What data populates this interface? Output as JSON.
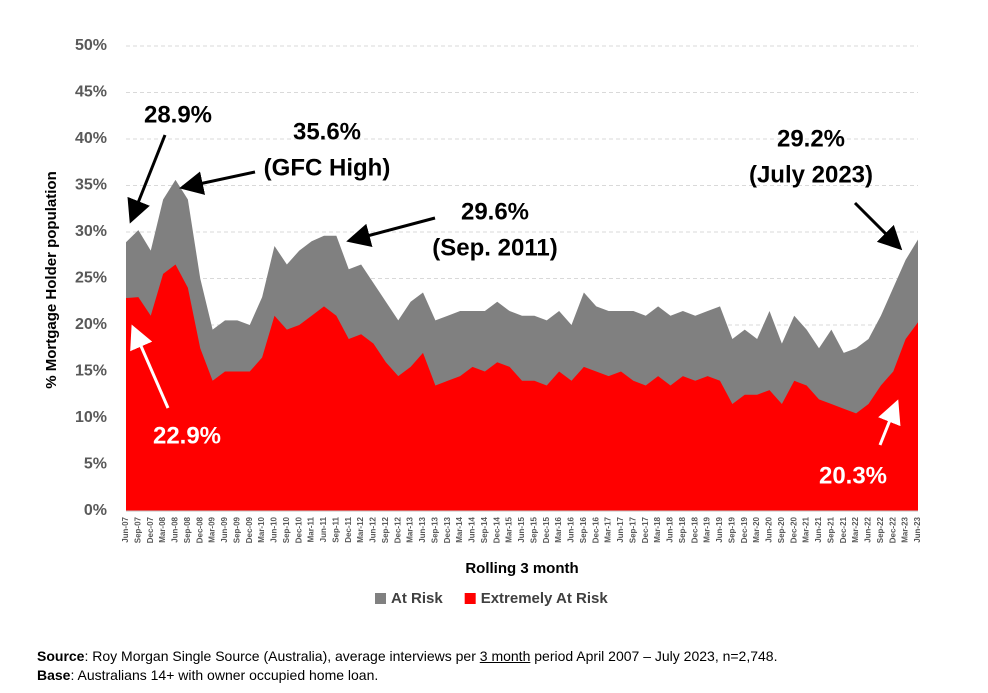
{
  "chart_data": {
    "type": "area",
    "y_label": "% Mortgage Holder population",
    "x_label": "Rolling 3 month",
    "categories": [
      "Jun-07",
      "Sep-07",
      "Dec-07",
      "Mar-08",
      "Jun-08",
      "Sep-08",
      "Dec-08",
      "Mar-09",
      "Jun-09",
      "Sep-09",
      "Dec-09",
      "Mar-10",
      "Jun-10",
      "Sep-10",
      "Dec-10",
      "Mar-11",
      "Jun-11",
      "Sep-11",
      "Dec-11",
      "Mar-12",
      "Jun-12",
      "Sep-12",
      "Dec-12",
      "Mar-13",
      "Jun-13",
      "Sep-13",
      "Dec-13",
      "Mar-14",
      "Jun-14",
      "Sep-14",
      "Dec-14",
      "Mar-15",
      "Jun-15",
      "Sep-15",
      "Dec-15",
      "Mar-16",
      "Jun-16",
      "Sep-16",
      "Dec-16",
      "Mar-17",
      "Jun-17",
      "Sep-17",
      "Dec-17",
      "Mar-18",
      "Jun-18",
      "Sep-18",
      "Dec-18",
      "Mar-19",
      "Jun-19",
      "Sep-19",
      "Dec-19",
      "Mar-20",
      "Jun-20",
      "Sep-20",
      "Dec-20",
      "Mar-21",
      "Jun-21",
      "Sep-21",
      "Dec-21",
      "Mar-22",
      "Jun-22",
      "Sep-22",
      "Dec-22",
      "Mar-23",
      "Jun-23"
    ],
    "series": [
      {
        "name": "At Risk",
        "color": "#808080",
        "values": [
          28.9,
          30.2,
          28,
          33.5,
          35.6,
          33.5,
          25,
          19.5,
          20.5,
          20.5,
          20,
          23,
          28.5,
          26.5,
          28,
          29,
          29.6,
          29.6,
          26,
          26.5,
          24.5,
          22.5,
          20.5,
          22.5,
          23.5,
          20.5,
          21,
          21.5,
          21.5,
          21.5,
          22.5,
          21.5,
          21,
          21,
          20.5,
          21.5,
          20,
          23.5,
          22,
          21.5,
          21.5,
          21.5,
          21,
          22,
          21,
          21.5,
          21,
          21.5,
          22,
          18.5,
          19.5,
          18.5,
          21.5,
          18,
          21,
          19.5,
          17.5,
          19.5,
          17,
          17.5,
          18.5,
          21,
          24,
          27,
          29.2
        ]
      },
      {
        "name": "Extremely At Risk",
        "color": "#ff0000",
        "values": [
          22.9,
          23,
          21,
          25.5,
          26.5,
          24,
          17.5,
          14,
          15,
          15,
          15,
          16.5,
          21,
          19.5,
          20,
          21,
          22,
          21,
          18.5,
          19,
          18,
          16,
          14.5,
          15.5,
          17,
          13.5,
          14,
          14.5,
          15.5,
          15,
          16,
          15.5,
          14,
          14,
          13.5,
          15,
          14,
          15.5,
          15,
          14.5,
          15,
          14,
          13.5,
          14.5,
          13.5,
          14.5,
          14,
          14.5,
          14,
          11.5,
          12.5,
          12.5,
          13,
          11.5,
          14,
          13.5,
          12,
          11.5,
          11,
          10.5,
          11.5,
          13.5,
          15,
          18.5,
          20.3
        ]
      }
    ],
    "ylim": [
      0,
      50
    ],
    "yticks": [
      {
        "value": 0,
        "label": "0%"
      },
      {
        "value": 5,
        "label": "5%"
      },
      {
        "value": 10,
        "label": "10%"
      },
      {
        "value": 15,
        "label": "15%"
      },
      {
        "value": 20,
        "label": "20%"
      },
      {
        "value": 25,
        "label": "25%"
      },
      {
        "value": 30,
        "label": "30%"
      },
      {
        "value": 35,
        "label": "35%"
      },
      {
        "value": 40,
        "label": "40%"
      },
      {
        "value": 45,
        "label": "45%"
      },
      {
        "value": 50,
        "label": "50%"
      }
    ],
    "grid": true,
    "legend": "bottom",
    "annotations": [
      {
        "lines": [
          "28.9%"
        ],
        "color": "black"
      },
      {
        "lines": [
          "35.6%",
          "(GFC High)"
        ],
        "color": "black"
      },
      {
        "lines": [
          "29.6%",
          "(Sep. 2011)"
        ],
        "color": "black"
      },
      {
        "lines": [
          "29.2%",
          "(July 2023)"
        ],
        "color": "black"
      },
      {
        "lines": [
          "22.9%"
        ],
        "color": "white"
      },
      {
        "lines": [
          "20.3%"
        ],
        "color": "white"
      }
    ]
  },
  "footer": {
    "source": [
      "Source",
      ": Roy Morgan Single Source (Australia), average interviews per ",
      "3 month",
      " period April 2007 – July 2023, n=2,748."
    ],
    "base": [
      "Base",
      ": Australians 14+ with owner occupied home loan."
    ]
  }
}
